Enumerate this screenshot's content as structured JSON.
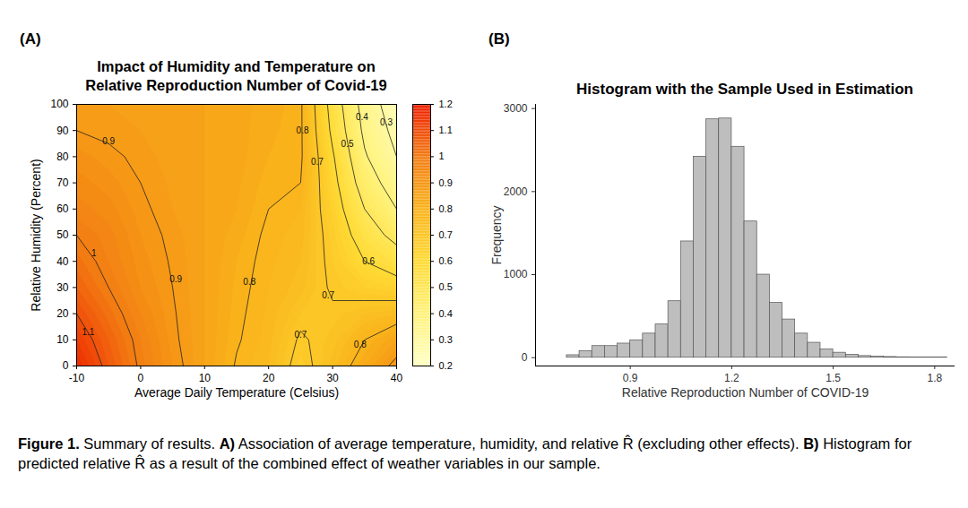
{
  "caption": [
    {
      "label": "Figure 1.",
      "text": "Summary of results."
    },
    {
      "label": "A)",
      "text": "Association of average temperature, humidity, and relative R̂ (excluding other effects)."
    },
    {
      "label": "B)",
      "text": "Histogram for predicted relative R̂ as a result of the combined effect of weather variables in our sample."
    }
  ],
  "chart_data": [
    {
      "type": "contour",
      "panel": "(A)",
      "title": "Impact of Humidity and Temperature on\nRelative Reproduction Number of Covid-19",
      "x_label": "Average Daily Temperature (Celsius)",
      "y_label": "Relative Humidity (Percent)",
      "x": [
        -10,
        -5,
        0,
        5,
        10,
        15,
        20,
        25,
        30,
        35,
        40
      ],
      "y": [
        0,
        10,
        20,
        30,
        40,
        50,
        60,
        70,
        80,
        90,
        100
      ],
      "values": [
        [
          1.18,
          1.08,
          0.99,
          0.92,
          0.86,
          0.795,
          0.76,
          0.67,
          0.75,
          0.84,
          0.92
        ],
        [
          1.14,
          1.06,
          0.98,
          0.91,
          0.86,
          0.805,
          0.77,
          0.69,
          0.73,
          0.8,
          0.86
        ],
        [
          1.1,
          1.03,
          0.96,
          0.905,
          0.86,
          0.81,
          0.775,
          0.72,
          0.71,
          0.74,
          0.76
        ],
        [
          1.06,
          1.0,
          0.94,
          0.9,
          0.86,
          0.815,
          0.78,
          0.75,
          0.69,
          0.66,
          0.64
        ],
        [
          1.03,
          0.98,
          0.93,
          0.895,
          0.86,
          0.82,
          0.785,
          0.76,
          0.68,
          0.6,
          0.55
        ],
        [
          1.0,
          0.97,
          0.92,
          0.89,
          0.86,
          0.83,
          0.79,
          0.77,
          0.67,
          0.55,
          0.47
        ],
        [
          0.97,
          0.95,
          0.91,
          0.88,
          0.86,
          0.84,
          0.8,
          0.78,
          0.65,
          0.5,
          0.4
        ],
        [
          0.95,
          0.93,
          0.9,
          0.875,
          0.86,
          0.845,
          0.81,
          0.8,
          0.63,
          0.45,
          0.35
        ],
        [
          0.93,
          0.91,
          0.89,
          0.87,
          0.86,
          0.85,
          0.82,
          0.81,
          0.61,
          0.41,
          0.3
        ],
        [
          0.9,
          0.89,
          0.88,
          0.87,
          0.86,
          0.85,
          0.825,
          0.81,
          0.58,
          0.38,
          0.27
        ],
        [
          0.88,
          0.88,
          0.88,
          0.87,
          0.86,
          0.85,
          0.83,
          0.81,
          0.56,
          0.36,
          0.24
        ]
      ],
      "xlim": [
        -10,
        40
      ],
      "ylim": [
        0,
        100
      ],
      "xticks": [
        -10,
        0,
        10,
        20,
        30,
        40
      ],
      "yticks": [
        0,
        10,
        20,
        30,
        40,
        50,
        60,
        70,
        80,
        90,
        100
      ],
      "colorbar_range": [
        0.2,
        1.2
      ],
      "colorbar_ticks": [
        0.2,
        0.3,
        0.4,
        0.5,
        0.6,
        0.7,
        0.8,
        0.9,
        1,
        1.1,
        1.2
      ],
      "contour_labels": [
        {
          "x": -8.2,
          "y": 13,
          "value": 1.1
        },
        {
          "x": -7.3,
          "y": 43,
          "value": 1
        },
        {
          "x": -5,
          "y": 86,
          "value": 0.9
        },
        {
          "x": 5.5,
          "y": 33,
          "value": 0.9
        },
        {
          "x": 17,
          "y": 32,
          "value": 0.8
        },
        {
          "x": 25.3,
          "y": 90,
          "value": 0.8
        },
        {
          "x": 27.6,
          "y": 78,
          "value": 0.7
        },
        {
          "x": 32.3,
          "y": 85,
          "value": 0.5
        },
        {
          "x": 34.6,
          "y": 95,
          "value": 0.4
        },
        {
          "x": 38.4,
          "y": 93,
          "value": 0.3
        },
        {
          "x": 35.6,
          "y": 40,
          "value": 0.6
        },
        {
          "x": 29.3,
          "y": 27,
          "value": 0.7
        },
        {
          "x": 25,
          "y": 12,
          "value": 0.7
        },
        {
          "x": 34.3,
          "y": 8,
          "value": 0.8
        }
      ]
    },
    {
      "type": "histogram",
      "panel": "(B)",
      "title": "Histogram with the Sample Used in Estimation",
      "x_label": "Relative Reproduction Number of COVID-19",
      "y_label": "Frequency",
      "bins": [
        0.7125,
        0.75,
        0.7875,
        0.825,
        0.8625,
        0.9,
        0.9375,
        0.975,
        1.0125,
        1.05,
        1.0875,
        1.125,
        1.1625,
        1.2,
        1.2375,
        1.275,
        1.3125,
        1.35,
        1.3875,
        1.425,
        1.4625,
        1.5,
        1.5375,
        1.575,
        1.6125,
        1.65,
        1.6875,
        1.725,
        1.7625,
        1.8,
        1.8375
      ],
      "counts": [
        30,
        80,
        140,
        140,
        170,
        210,
        290,
        400,
        680,
        1400,
        2420,
        2870,
        2880,
        2540,
        1640,
        1000,
        660,
        460,
        290,
        180,
        100,
        60,
        35,
        20,
        12,
        8,
        5,
        3,
        2,
        1
      ],
      "xlim": [
        0.62,
        1.86
      ],
      "ylim": [
        -100,
        3050
      ],
      "xticks": [
        0.9,
        1.2,
        1.5,
        1.8
      ],
      "yticks": [
        0,
        1000,
        2000,
        3000
      ],
      "color": "#bebebe"
    }
  ]
}
